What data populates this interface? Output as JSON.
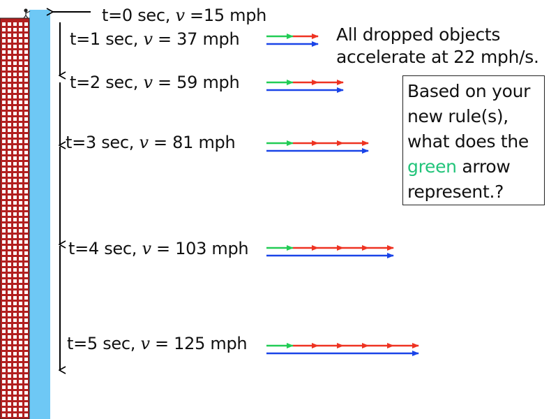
{
  "labels": [
    {
      "t": "t=0 sec, ",
      "v": "v",
      "rest": " =15 mph"
    },
    {
      "t": "t=1 sec, ",
      "v": "v",
      "rest": " = 37 mph"
    },
    {
      "t": "t=2 sec, ",
      "v": "v",
      "rest": " = 59 mph"
    },
    {
      "t": "t=3 sec, ",
      "v": "v",
      "rest": " = 81 mph"
    },
    {
      "t": "t=4 sec, ",
      "v": "v",
      "rest": " = 103 mph"
    },
    {
      "t": "t=5 sec, ",
      "v": "v",
      "rest": " = 125 mph"
    }
  ],
  "statement": {
    "line1": "All dropped objects",
    "line2": "accelerate at 22 mph/s."
  },
  "question": {
    "line1": "Based on your",
    "line2": "new rule(s),",
    "line3": "what does the",
    "green_word": "green",
    "line4_rest": " arrow",
    "line5": "represent.?"
  },
  "arrow_rows": [
    {
      "red_segments": 1
    },
    {
      "red_segments": 2
    },
    {
      "red_segments": 3
    },
    {
      "red_segments": 4
    },
    {
      "red_segments": 5
    }
  ],
  "colors": {
    "green_arrow": "#22cc55",
    "red_arrow": "#ee3322",
    "blue_arrow": "#1a44e8",
    "building": "#b21f1f",
    "building_window": "#ffffff",
    "sky_strip": "#6ec8f5"
  }
}
